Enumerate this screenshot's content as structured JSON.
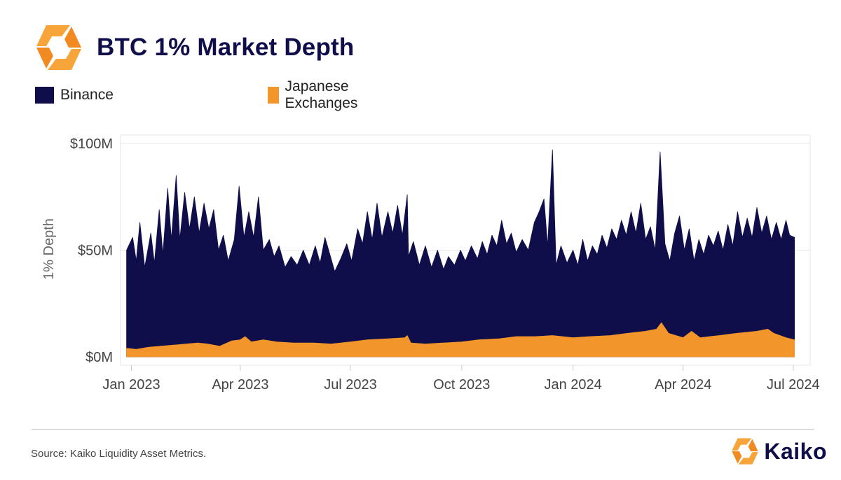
{
  "header": {
    "title": "BTC 1% Market Depth",
    "logo_icon": "kaiko-logo-icon"
  },
  "legend": [
    {
      "label": "Binance",
      "color": "#0f0e4a"
    },
    {
      "label": "Japanese Exchanges",
      "color": "#f2962b"
    }
  ],
  "footer": {
    "source": "Source: Kaiko Liquidity Asset Metrics.",
    "brand": "Kaiko"
  },
  "colors": {
    "binance": "#0f0e4a",
    "japanese": "#f2962b",
    "grid": "#e6e6e6",
    "axis": "#cccccc"
  },
  "chart_data": {
    "type": "area",
    "stacked": false,
    "title": "BTC 1% Market Depth",
    "xlabel": "",
    "ylabel": "1% Depth",
    "ylim": [
      0,
      100000000
    ],
    "yticks": [
      {
        "value": 0,
        "label": "$0M"
      },
      {
        "value": 50000000,
        "label": "$50M"
      },
      {
        "value": 100000000,
        "label": "$100M"
      }
    ],
    "xlim": [
      "2022-12-23",
      "2024-07-15"
    ],
    "xticks": [
      {
        "date": "2023-01-01",
        "label": "Jan 2023"
      },
      {
        "date": "2023-04-01",
        "label": "Apr 2023"
      },
      {
        "date": "2023-07-01",
        "label": "Jul 2023"
      },
      {
        "date": "2023-10-01",
        "label": "Oct 2023"
      },
      {
        "date": "2024-01-01",
        "label": "Jan 2024"
      },
      {
        "date": "2024-04-01",
        "label": "Apr 2024"
      },
      {
        "date": "2024-07-01",
        "label": "Jul 2024"
      }
    ],
    "grid": true,
    "legend_position": "top-left",
    "series": [
      {
        "name": "Binance",
        "color": "#0f0e4a",
        "points": [
          [
            "2022-12-28",
            50
          ],
          [
            "2023-01-02",
            56
          ],
          [
            "2023-01-05",
            45
          ],
          [
            "2023-01-08",
            63
          ],
          [
            "2023-01-12",
            42
          ],
          [
            "2023-01-17",
            58
          ],
          [
            "2023-01-20",
            44
          ],
          [
            "2023-01-24",
            69
          ],
          [
            "2023-01-27",
            48
          ],
          [
            "2023-01-31",
            79
          ],
          [
            "2023-02-03",
            55
          ],
          [
            "2023-02-07",
            85
          ],
          [
            "2023-02-10",
            55
          ],
          [
            "2023-02-14",
            77
          ],
          [
            "2023-02-18",
            60
          ],
          [
            "2023-02-22",
            75
          ],
          [
            "2023-02-26",
            58
          ],
          [
            "2023-03-02",
            72
          ],
          [
            "2023-03-06",
            60
          ],
          [
            "2023-03-10",
            69
          ],
          [
            "2023-03-14",
            50
          ],
          [
            "2023-03-18",
            57
          ],
          [
            "2023-03-22",
            45
          ],
          [
            "2023-03-27",
            55
          ],
          [
            "2023-03-31",
            80
          ],
          [
            "2023-04-04",
            56
          ],
          [
            "2023-04-08",
            68
          ],
          [
            "2023-04-12",
            56
          ],
          [
            "2023-04-16",
            75
          ],
          [
            "2023-04-20",
            50
          ],
          [
            "2023-04-25",
            55
          ],
          [
            "2023-04-29",
            47
          ],
          [
            "2023-05-03",
            52
          ],
          [
            "2023-05-08",
            42
          ],
          [
            "2023-05-13",
            47
          ],
          [
            "2023-05-18",
            43
          ],
          [
            "2023-05-23",
            50
          ],
          [
            "2023-05-28",
            43
          ],
          [
            "2023-06-02",
            52
          ],
          [
            "2023-06-06",
            44
          ],
          [
            "2023-06-10",
            56
          ],
          [
            "2023-06-14",
            48
          ],
          [
            "2023-06-18",
            40
          ],
          [
            "2023-06-23",
            46
          ],
          [
            "2023-06-28",
            53
          ],
          [
            "2023-07-02",
            45
          ],
          [
            "2023-07-07",
            60
          ],
          [
            "2023-07-11",
            53
          ],
          [
            "2023-07-15",
            68
          ],
          [
            "2023-07-19",
            55
          ],
          [
            "2023-07-23",
            72
          ],
          [
            "2023-07-27",
            56
          ],
          [
            "2023-08-01",
            68
          ],
          [
            "2023-08-05",
            58
          ],
          [
            "2023-08-09",
            71
          ],
          [
            "2023-08-13",
            57
          ],
          [
            "2023-08-17",
            76
          ],
          [
            "2023-08-18",
            47
          ],
          [
            "2023-08-22",
            54
          ],
          [
            "2023-08-27",
            43
          ],
          [
            "2023-09-01",
            52
          ],
          [
            "2023-09-06",
            42
          ],
          [
            "2023-09-11",
            50
          ],
          [
            "2023-09-16",
            41
          ],
          [
            "2023-09-20",
            47
          ],
          [
            "2023-09-25",
            43
          ],
          [
            "2023-09-30",
            50
          ],
          [
            "2023-10-04",
            45
          ],
          [
            "2023-10-09",
            52
          ],
          [
            "2023-10-14",
            46
          ],
          [
            "2023-10-18",
            54
          ],
          [
            "2023-10-22",
            48
          ],
          [
            "2023-10-26",
            57
          ],
          [
            "2023-10-30",
            52
          ],
          [
            "2023-11-03",
            64
          ],
          [
            "2023-11-07",
            53
          ],
          [
            "2023-11-11",
            58
          ],
          [
            "2023-11-15",
            49
          ],
          [
            "2023-11-20",
            55
          ],
          [
            "2023-11-25",
            50
          ],
          [
            "2023-11-30",
            63
          ],
          [
            "2023-12-04",
            68
          ],
          [
            "2023-12-08",
            74
          ],
          [
            "2023-12-11",
            52
          ],
          [
            "2023-12-15",
            97
          ],
          [
            "2023-12-18",
            43
          ],
          [
            "2023-12-22",
            52
          ],
          [
            "2023-12-27",
            44
          ],
          [
            "2024-01-01",
            50
          ],
          [
            "2024-01-05",
            43
          ],
          [
            "2024-01-09",
            55
          ],
          [
            "2024-01-13",
            45
          ],
          [
            "2024-01-17",
            52
          ],
          [
            "2024-01-21",
            48
          ],
          [
            "2024-01-25",
            57
          ],
          [
            "2024-01-29",
            51
          ],
          [
            "2024-02-02",
            60
          ],
          [
            "2024-02-06",
            55
          ],
          [
            "2024-02-10",
            64
          ],
          [
            "2024-02-14",
            57
          ],
          [
            "2024-02-18",
            68
          ],
          [
            "2024-02-22",
            58
          ],
          [
            "2024-02-26",
            72
          ],
          [
            "2024-03-01",
            55
          ],
          [
            "2024-03-05",
            61
          ],
          [
            "2024-03-09",
            50
          ],
          [
            "2024-03-13",
            96
          ],
          [
            "2024-03-17",
            53
          ],
          [
            "2024-03-21",
            45
          ],
          [
            "2024-03-25",
            58
          ],
          [
            "2024-03-29",
            66
          ],
          [
            "2024-04-02",
            50
          ],
          [
            "2024-04-06",
            60
          ],
          [
            "2024-04-10",
            45
          ],
          [
            "2024-04-14",
            55
          ],
          [
            "2024-04-18",
            48
          ],
          [
            "2024-04-22",
            57
          ],
          [
            "2024-04-26",
            52
          ],
          [
            "2024-04-30",
            59
          ],
          [
            "2024-05-04",
            50
          ],
          [
            "2024-05-08",
            62
          ],
          [
            "2024-05-12",
            52
          ],
          [
            "2024-05-16",
            68
          ],
          [
            "2024-05-20",
            56
          ],
          [
            "2024-05-24",
            65
          ],
          [
            "2024-05-28",
            56
          ],
          [
            "2024-06-01",
            70
          ],
          [
            "2024-06-05",
            58
          ],
          [
            "2024-06-09",
            66
          ],
          [
            "2024-06-13",
            55
          ],
          [
            "2024-06-17",
            63
          ],
          [
            "2024-06-21",
            55
          ],
          [
            "2024-06-25",
            64
          ],
          [
            "2024-06-28",
            57
          ],
          [
            "2024-07-02",
            56
          ]
        ]
      },
      {
        "name": "Japanese Exchanges",
        "color": "#f2962b",
        "points": [
          [
            "2022-12-28",
            4
          ],
          [
            "2023-01-05",
            3.5
          ],
          [
            "2023-01-15",
            4.5
          ],
          [
            "2023-01-25",
            5
          ],
          [
            "2023-02-05",
            5.5
          ],
          [
            "2023-02-15",
            6
          ],
          [
            "2023-02-25",
            6.5
          ],
          [
            "2023-03-05",
            6
          ],
          [
            "2023-03-15",
            5
          ],
          [
            "2023-03-25",
            7.5
          ],
          [
            "2023-04-01",
            8
          ],
          [
            "2023-04-05",
            9.5
          ],
          [
            "2023-04-10",
            7
          ],
          [
            "2023-04-20",
            8
          ],
          [
            "2023-05-01",
            7
          ],
          [
            "2023-05-15",
            6.5
          ],
          [
            "2023-06-01",
            6.5
          ],
          [
            "2023-06-15",
            6
          ],
          [
            "2023-07-01",
            7
          ],
          [
            "2023-07-15",
            8
          ],
          [
            "2023-08-01",
            8.5
          ],
          [
            "2023-08-15",
            9
          ],
          [
            "2023-08-17",
            10
          ],
          [
            "2023-08-20",
            6.5
          ],
          [
            "2023-09-01",
            6
          ],
          [
            "2023-09-15",
            6.5
          ],
          [
            "2023-10-01",
            7
          ],
          [
            "2023-10-15",
            8
          ],
          [
            "2023-11-01",
            8.5
          ],
          [
            "2023-11-15",
            9.5
          ],
          [
            "2023-12-01",
            9.5
          ],
          [
            "2023-12-15",
            10
          ],
          [
            "2024-01-01",
            9
          ],
          [
            "2024-01-15",
            9.5
          ],
          [
            "2024-02-01",
            10
          ],
          [
            "2024-02-15",
            11
          ],
          [
            "2024-03-01",
            12
          ],
          [
            "2024-03-10",
            13
          ],
          [
            "2024-03-14",
            16
          ],
          [
            "2024-03-20",
            11
          ],
          [
            "2024-04-01",
            9
          ],
          [
            "2024-04-08",
            12
          ],
          [
            "2024-04-15",
            9
          ],
          [
            "2024-05-01",
            10
          ],
          [
            "2024-05-15",
            11
          ],
          [
            "2024-06-01",
            12
          ],
          [
            "2024-06-10",
            13
          ],
          [
            "2024-06-15",
            11
          ],
          [
            "2024-06-25",
            9
          ],
          [
            "2024-07-02",
            8
          ]
        ]
      }
    ]
  }
}
